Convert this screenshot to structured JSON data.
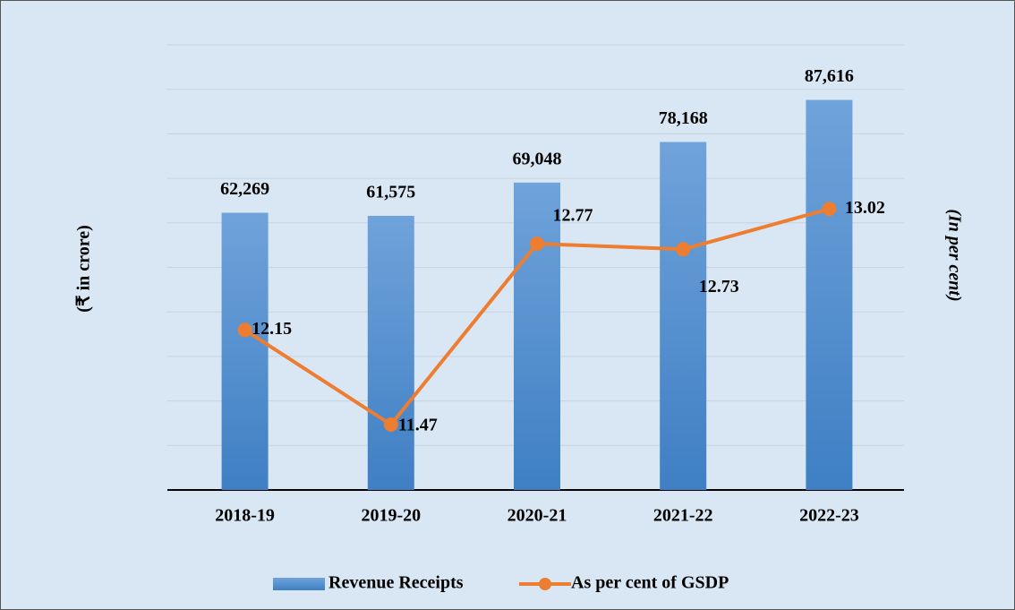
{
  "chart_data": {
    "type": "bar_line",
    "y_label": "(₹ in crore)",
    "y2_label": "(In per cent)",
    "categories": [
      "2018-19",
      "2019-20",
      "2020-21",
      "2021-22",
      "2022-23"
    ],
    "series": [
      {
        "name": "Revenue Receipts",
        "type": "bar",
        "color": "#5b9bd5",
        "values": [
          62269,
          61575,
          69048,
          78168,
          87616
        ],
        "value_labels": [
          "62,269",
          "61,575",
          "69,048",
          "78,168",
          "87,616"
        ]
      },
      {
        "name": "As per cent of GSDP",
        "type": "line",
        "axis": "y2",
        "color": "#ed7d31",
        "values": [
          12.15,
          11.47,
          12.77,
          12.73,
          13.02
        ]
      }
    ],
    "ylim": [
      0,
      100000
    ],
    "yticks": [
      0,
      10000,
      20000,
      30000,
      40000,
      50000,
      60000,
      70000,
      80000,
      90000,
      100000
    ],
    "y2lim": [
      11,
      14.2
    ],
    "grid": true,
    "legend": "bottom"
  }
}
